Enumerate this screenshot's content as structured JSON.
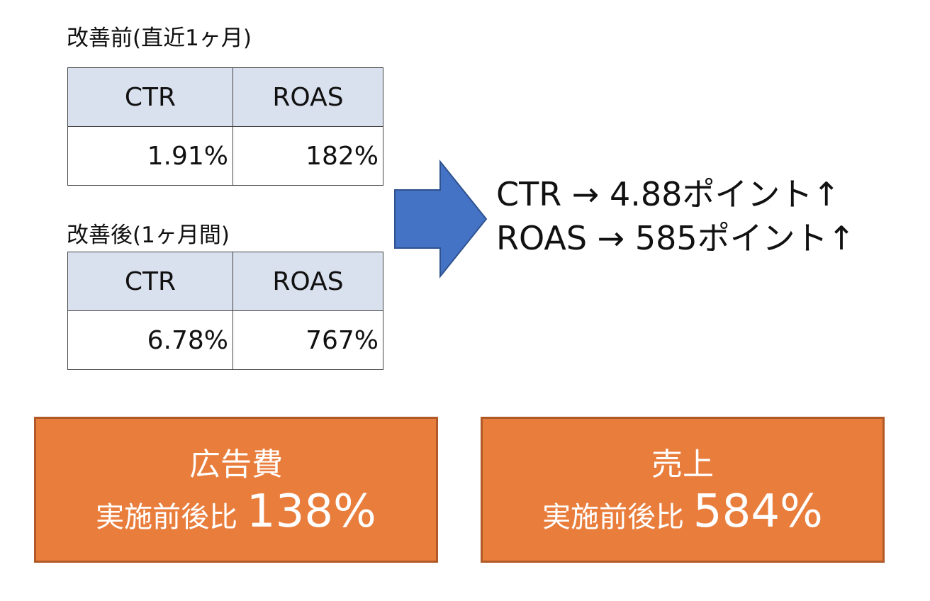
{
  "before": {
    "title": "改善前(直近1ヶ月)",
    "headers": [
      "CTR",
      "ROAS"
    ],
    "values": [
      "1.91%",
      "182%"
    ]
  },
  "after": {
    "title": "改善後(1ヶ月間)",
    "headers": [
      "CTR",
      "ROAS"
    ],
    "values": [
      "6.78%",
      "767%"
    ]
  },
  "arrow": {
    "icon": "right-arrow-icon",
    "color": "#4472C4"
  },
  "results": [
    "CTR → 4.88ポイント↑",
    "ROAS → 585ポイント↑"
  ],
  "boxes": [
    {
      "title": "広告費",
      "label": "実施前後比",
      "value": "138%"
    },
    {
      "title": "売上",
      "label": "実施前後比",
      "value": "584%"
    }
  ],
  "colors": {
    "box_fill": "#E97D3C",
    "box_border": "#B05A28",
    "header_fill": "#D9E0EE"
  }
}
